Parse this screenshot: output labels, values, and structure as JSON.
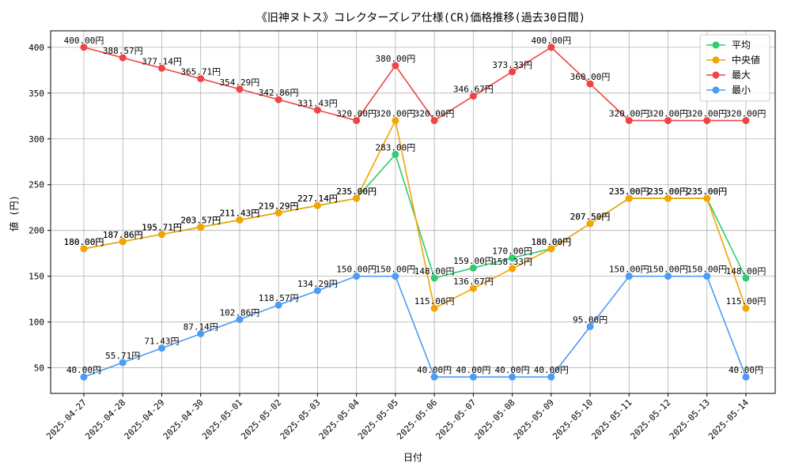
{
  "chart_data": {
    "type": "line",
    "title": "《旧神ヌトス》コレクターズレア仕様(CR)価格推移(過去30日間)",
    "xlabel": "日付",
    "ylabel": "値 (円)",
    "ylim": [
      22,
      418
    ],
    "yticks": [
      50,
      100,
      150,
      200,
      250,
      300,
      350,
      400
    ],
    "grid": true,
    "legend_position": "top-right",
    "value_suffix": "円",
    "categories": [
      "2025-04-27",
      "2025-04-28",
      "2025-04-29",
      "2025-04-30",
      "2025-05-01",
      "2025-05-02",
      "2025-05-03",
      "2025-05-04",
      "2025-05-05",
      "2025-05-06",
      "2025-05-07",
      "2025-05-08",
      "2025-05-09",
      "2025-05-10",
      "2025-05-11",
      "2025-05-12",
      "2025-05-13",
      "2025-05-14"
    ],
    "series": [
      {
        "name": "平均",
        "color": "#2ecc71",
        "values": [
          180.0,
          187.86,
          195.71,
          203.57,
          211.43,
          219.29,
          227.14,
          235.0,
          283.0,
          148.0,
          159.0,
          170.0,
          180.0,
          207.5,
          235.0,
          235.0,
          235.0,
          148.0
        ]
      },
      {
        "name": "中央値",
        "color": "#f5a300",
        "values": [
          180.0,
          187.86,
          195.71,
          203.57,
          211.43,
          219.29,
          227.14,
          235.0,
          320.0,
          115.0,
          136.67,
          158.33,
          180.0,
          207.5,
          235.0,
          235.0,
          235.0,
          115.0
        ]
      },
      {
        "name": "最大",
        "color": "#ef4444",
        "values": [
          400.0,
          388.57,
          377.14,
          365.71,
          354.29,
          342.86,
          331.43,
          320.0,
          380.0,
          320.0,
          346.67,
          373.33,
          400.0,
          360.0,
          320.0,
          320.0,
          320.0,
          320.0
        ]
      },
      {
        "name": "最小",
        "color": "#4c9bf5",
        "values": [
          40.0,
          55.71,
          71.43,
          87.14,
          102.86,
          118.57,
          134.29,
          150.0,
          150.0,
          40.0,
          40.0,
          40.0,
          40.0,
          95.0,
          150.0,
          150.0,
          150.0,
          40.0
        ]
      }
    ]
  }
}
